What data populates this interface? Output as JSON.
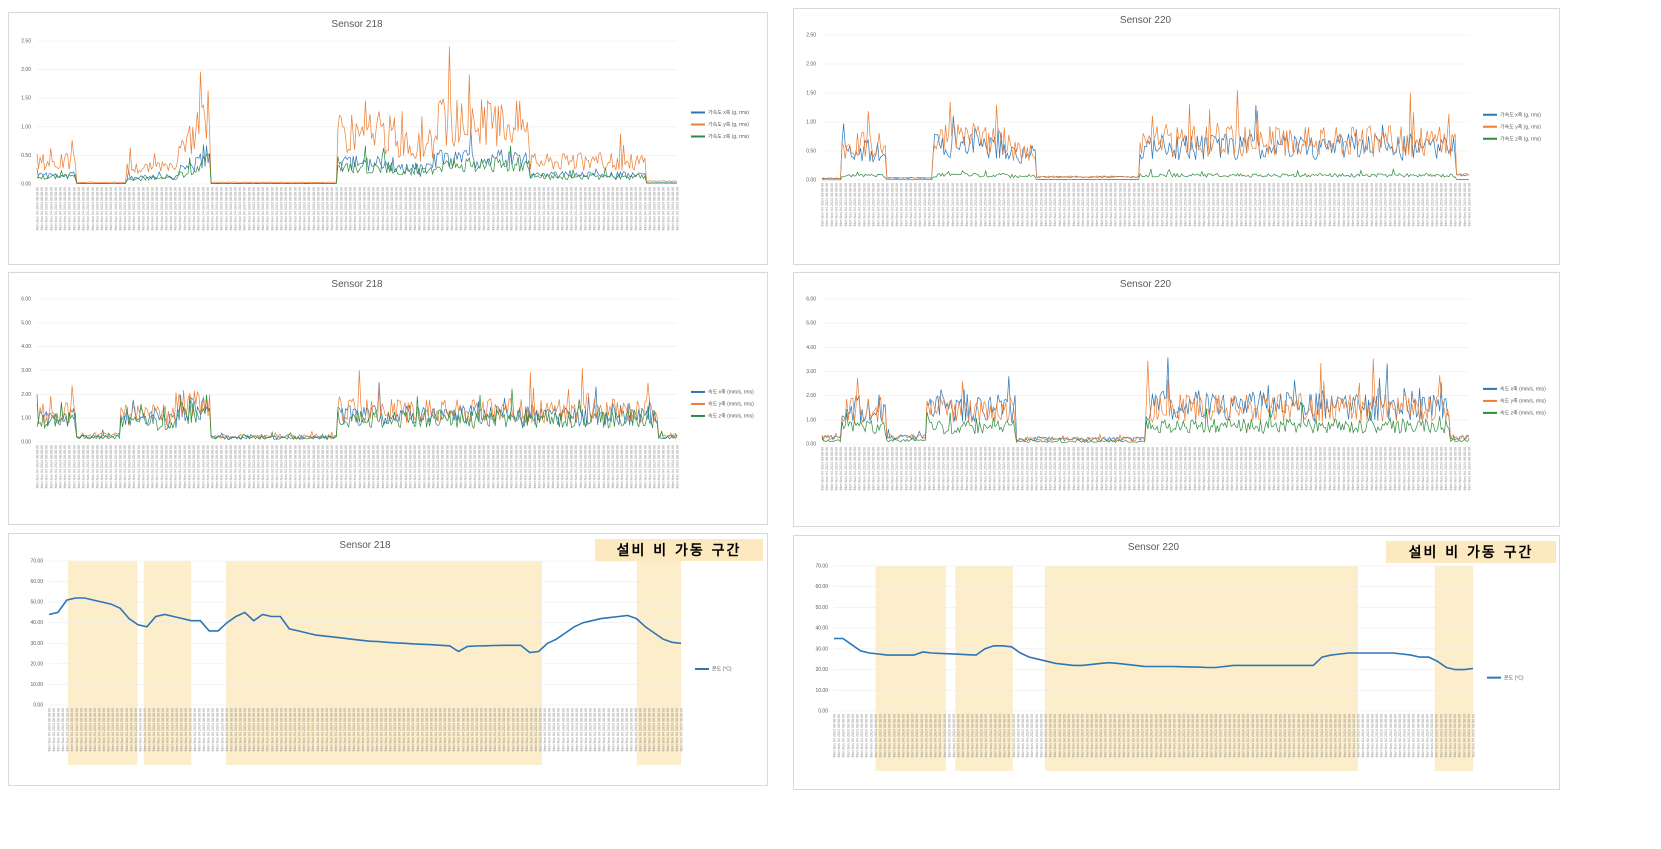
{
  "colors": {
    "axis1": "#2e75b6",
    "axis2": "#ed7d31",
    "axis3": "#2e8b3e",
    "temp": "#2e75b6",
    "shade": "#fdeecb"
  },
  "annotation_label": "설비 비 가동 구간",
  "chart_data": [
    {
      "type": "line",
      "title": "Sensor 218",
      "ylim": [
        0,
        2.5
      ],
      "yticks": [
        "0.00",
        "0.50",
        "1.00",
        "1.50",
        "2.00",
        "2.50"
      ],
      "x_start": "Mon Nov 04 2024 08:08:00",
      "x_labels_sample": [
        "Mon Nov 04 2024 08:08:00",
        "Tue Nov 05 2024 ...",
        "Wed Nov 06 2024 ...",
        "Thu Nov 07 2024 ..."
      ],
      "series": [
        {
          "name": "가속도 x축 (g, rms)",
          "profile": "acc218",
          "scale": 0.4
        },
        {
          "name": "가속도 y축 (g, rms)",
          "profile": "acc218",
          "scale": 1.0
        },
        {
          "name": "가속도 z축 (g, rms)",
          "profile": "acc218",
          "scale": 0.32
        }
      ],
      "legend": "right"
    },
    {
      "type": "line",
      "title": "Sensor 220",
      "ylim": [
        0,
        2.5
      ],
      "yticks": [
        "0.00",
        "0.50",
        "1.00",
        "1.50",
        "2.00",
        "2.50"
      ],
      "x_start": "Mon Nov 04 2024 08:08:00",
      "series": [
        {
          "name": "가속도 x축 (g, rms)",
          "profile": "acc220",
          "scale": 0.85
        },
        {
          "name": "가속도 y축 (g, rms)",
          "profile": "acc220",
          "scale": 1.0
        },
        {
          "name": "가속도 z축 (g, rms)",
          "profile": "acc220",
          "scale": 0.12
        }
      ],
      "legend": "right"
    },
    {
      "type": "line",
      "title": "Sensor 218",
      "ylim": [
        0,
        6
      ],
      "yticks": [
        "0.00",
        "1.00",
        "2.00",
        "3.00",
        "4.00",
        "5.00",
        "6.00"
      ],
      "x_start": "Mon Nov 04 2024 08:08:00",
      "series": [
        {
          "name": "속도 x축 (mm/s, rms)",
          "profile": "vel218",
          "scale": 0.85
        },
        {
          "name": "속도 y축 (mm/s, rms)",
          "profile": "vel218",
          "scale": 1.0
        },
        {
          "name": "속도 z축 (mm/s, rms)",
          "profile": "vel218",
          "scale": 0.75
        }
      ],
      "legend": "right"
    },
    {
      "type": "line",
      "title": "Sensor 220",
      "ylim": [
        0,
        6
      ],
      "yticks": [
        "0.00",
        "1.00",
        "2.00",
        "3.00",
        "4.00",
        "5.00",
        "6.00"
      ],
      "x_start": "Mon Nov 04 2024 08:08:00",
      "series": [
        {
          "name": "속도 x축 (mm/s, rms)",
          "profile": "vel220x",
          "scale": 1.0
        },
        {
          "name": "속도 y축 (mm/s, rms)",
          "profile": "vel220",
          "scale": 1.0
        },
        {
          "name": "속도 z축 (mm/s, rms)",
          "profile": "vel220",
          "scale": 0.5
        }
      ],
      "legend": "right"
    },
    {
      "type": "line",
      "title": "Sensor 218",
      "ylim": [
        0,
        70
      ],
      "yticks": [
        "0.00",
        "10.00",
        "20.00",
        "30.00",
        "40.00",
        "50.00",
        "60.00",
        "70.00"
      ],
      "x_start": "Mon Nov 04 2024 08:08:00",
      "series": [
        {
          "name": "온도 (°C)",
          "values": [
            44,
            45,
            51,
            52,
            52,
            51,
            50,
            49,
            47,
            42,
            39,
            38,
            43,
            44,
            43,
            42,
            41,
            41,
            36,
            36,
            40,
            43,
            45,
            41,
            44,
            43,
            43,
            37,
            36,
            35,
            34,
            33.5,
            33,
            32.5,
            32,
            31.5,
            31,
            30.8,
            30.5,
            30.2,
            30,
            29.7,
            29.5,
            29.3,
            29,
            28.8,
            26,
            28.5,
            28.7,
            28.8,
            28.9,
            29,
            29,
            29,
            25.5,
            26,
            30,
            32,
            35,
            38,
            40,
            41,
            42,
            42.5,
            43,
            43.5,
            42,
            38,
            35,
            32,
            30.5,
            30
          ]
        }
      ],
      "shaded_ranges": [
        [
          0.03,
          0.14
        ],
        [
          0.15,
          0.225
        ],
        [
          0.28,
          0.78
        ],
        [
          0.93,
          1.0
        ]
      ],
      "legend": "right"
    },
    {
      "type": "line",
      "title": "Sensor 220",
      "ylim": [
        0,
        70
      ],
      "yticks": [
        "0.00",
        "10.00",
        "20.00",
        "30.00",
        "40.00",
        "50.00",
        "60.00",
        "70.00"
      ],
      "x_start": "Mon Nov 04 2024 08:08:00",
      "series": [
        {
          "name": "온도 (°C)",
          "values": [
            35,
            35,
            32,
            29,
            28,
            27.5,
            27,
            27,
            27,
            27,
            28.5,
            28,
            27.8,
            27.6,
            27.4,
            27.2,
            27,
            30,
            31.5,
            31.5,
            31,
            28,
            26,
            25,
            24,
            23,
            22.5,
            22,
            22,
            22.5,
            23,
            23.3,
            23,
            22.5,
            22,
            21.5,
            21.5,
            21.5,
            21.5,
            21.4,
            21.3,
            21.2,
            21,
            21,
            21.5,
            22,
            22,
            22,
            22,
            22,
            22,
            22,
            22,
            22,
            22,
            26,
            27,
            27.5,
            28,
            28,
            28,
            28,
            28,
            28,
            27.5,
            27,
            26,
            26,
            24,
            21,
            20,
            20,
            20.5
          ]
        }
      ],
      "shaded_ranges": [
        [
          0.065,
          0.175
        ],
        [
          0.19,
          0.28
        ],
        [
          0.33,
          0.82
        ],
        [
          0.94,
          1.0
        ]
      ],
      "legend": "right"
    }
  ]
}
